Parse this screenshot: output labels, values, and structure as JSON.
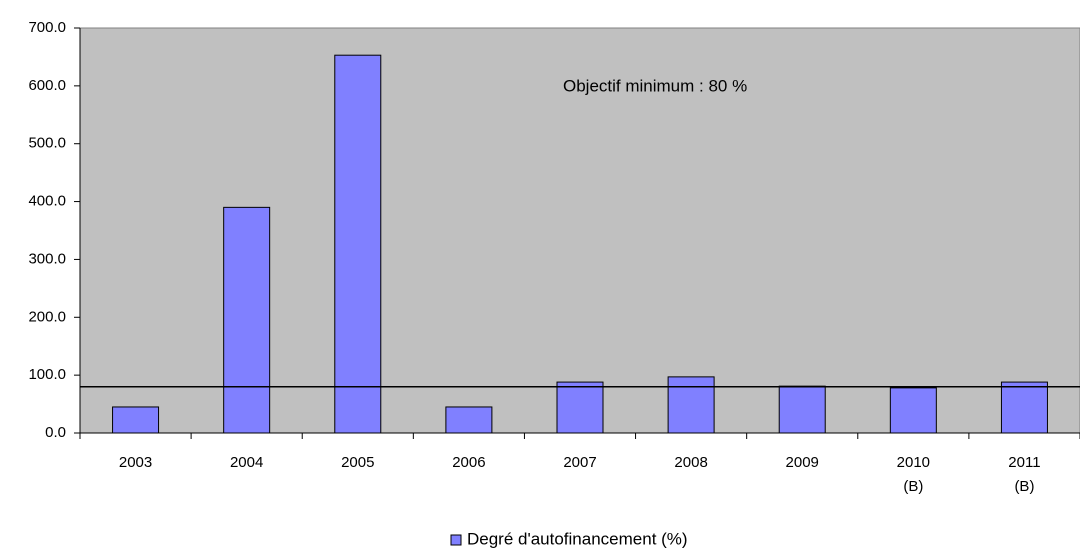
{
  "chart_data": {
    "type": "bar",
    "categories": [
      "2003",
      "2004",
      "2005",
      "2006",
      "2007",
      "2008",
      "2009",
      "2010\n(B)",
      "2011\n(B)"
    ],
    "series": [
      {
        "name": "Degré d'autofinancement (%)",
        "color": "#8080ff",
        "values": [
          45,
          390,
          653,
          45,
          88,
          97,
          81,
          78,
          88
        ]
      }
    ],
    "ylim": [
      0,
      700
    ],
    "yticks": [
      {
        "value": 0,
        "label": "0.0"
      },
      {
        "value": 100,
        "label": "100.0"
      },
      {
        "value": 200,
        "label": "200.0"
      },
      {
        "value": 300,
        "label": "300.0"
      },
      {
        "value": 400,
        "label": "400.0"
      },
      {
        "value": 500,
        "label": "500.0"
      },
      {
        "value": 600,
        "label": "600.0"
      },
      {
        "value": 700,
        "label": "700.0"
      }
    ],
    "annotation": "Objectif minimum :  80 %",
    "target": 80,
    "plot_background": "#c0c0c0",
    "legend": "bottom"
  }
}
